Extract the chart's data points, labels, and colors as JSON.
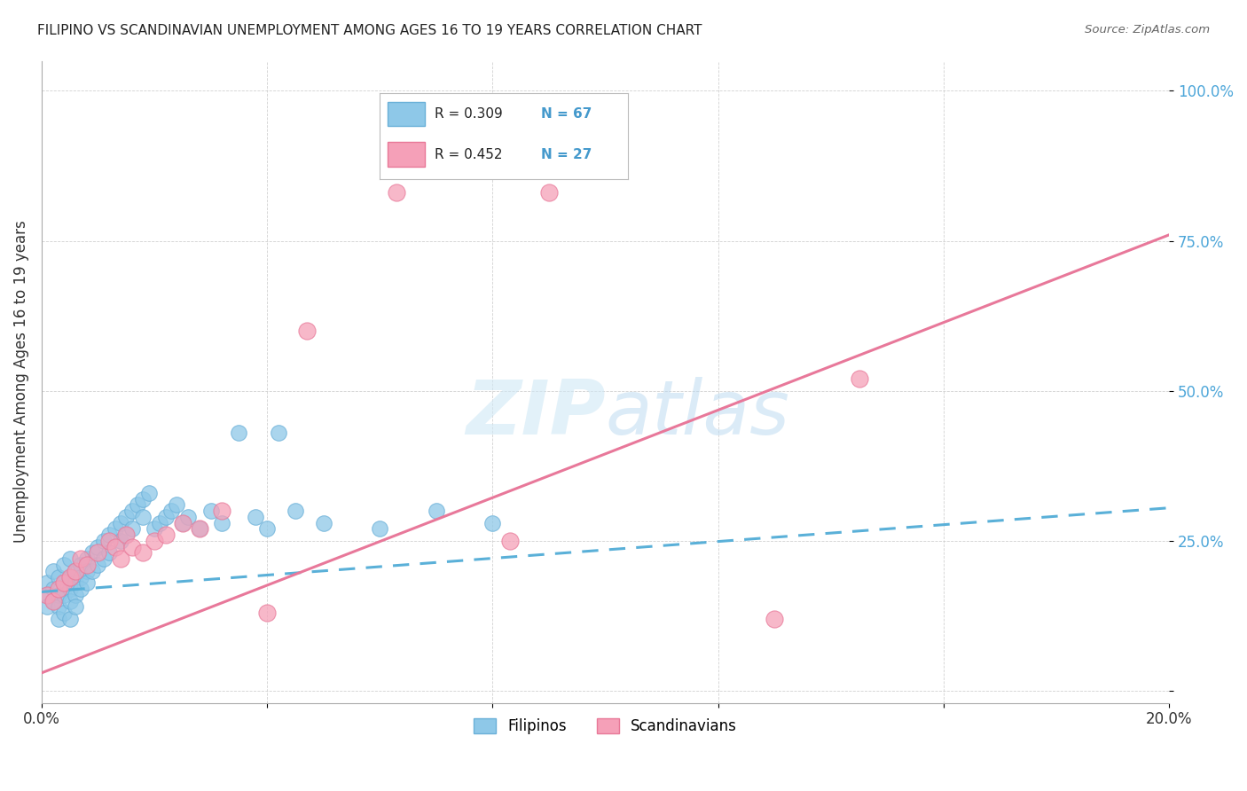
{
  "title": "FILIPINO VS SCANDINAVIAN UNEMPLOYMENT AMONG AGES 16 TO 19 YEARS CORRELATION CHART",
  "source": "Source: ZipAtlas.com",
  "ylabel": "Unemployment Among Ages 16 to 19 years",
  "xlim": [
    0.0,
    0.2
  ],
  "ylim": [
    -0.02,
    1.05
  ],
  "filipino_R": 0.309,
  "filipino_N": 67,
  "scandinavian_R": 0.452,
  "scandinavian_N": 27,
  "filipino_color": "#8ec8e8",
  "filipino_edge": "#6ab0d8",
  "scandinavian_color": "#f5a0b8",
  "scandinavian_edge": "#e87898",
  "trend_filipino_color": "#5ab0d8",
  "trend_scandinavian_color": "#e8789a",
  "watermark_color": "#d0e8f5",
  "background_color": "#ffffff",
  "grid_color": "#cccccc",
  "ytick_color": "#4da6d9",
  "fil_x": [
    0.001,
    0.001,
    0.001,
    0.002,
    0.002,
    0.002,
    0.003,
    0.003,
    0.003,
    0.003,
    0.004,
    0.004,
    0.004,
    0.004,
    0.005,
    0.005,
    0.005,
    0.005,
    0.005,
    0.006,
    0.006,
    0.006,
    0.006,
    0.007,
    0.007,
    0.007,
    0.008,
    0.008,
    0.008,
    0.009,
    0.009,
    0.01,
    0.01,
    0.011,
    0.011,
    0.012,
    0.012,
    0.013,
    0.014,
    0.014,
    0.015,
    0.015,
    0.016,
    0.016,
    0.017,
    0.018,
    0.018,
    0.019,
    0.02,
    0.021,
    0.022,
    0.023,
    0.024,
    0.025,
    0.026,
    0.028,
    0.03,
    0.032,
    0.035,
    0.038,
    0.04,
    0.042,
    0.045,
    0.05,
    0.06,
    0.07,
    0.08
  ],
  "fil_y": [
    0.18,
    0.16,
    0.14,
    0.2,
    0.17,
    0.15,
    0.19,
    0.16,
    0.14,
    0.12,
    0.21,
    0.18,
    0.16,
    0.13,
    0.22,
    0.19,
    0.17,
    0.15,
    0.12,
    0.2,
    0.18,
    0.16,
    0.14,
    0.21,
    0.19,
    0.17,
    0.22,
    0.2,
    0.18,
    0.23,
    0.2,
    0.24,
    0.21,
    0.25,
    0.22,
    0.26,
    0.23,
    0.27,
    0.28,
    0.25,
    0.29,
    0.26,
    0.3,
    0.27,
    0.31,
    0.32,
    0.29,
    0.33,
    0.27,
    0.28,
    0.29,
    0.3,
    0.31,
    0.28,
    0.29,
    0.27,
    0.3,
    0.28,
    0.43,
    0.29,
    0.27,
    0.43,
    0.3,
    0.28,
    0.27,
    0.3,
    0.28
  ],
  "scan_x": [
    0.001,
    0.002,
    0.003,
    0.004,
    0.005,
    0.006,
    0.007,
    0.008,
    0.01,
    0.012,
    0.013,
    0.014,
    0.015,
    0.016,
    0.018,
    0.02,
    0.022,
    0.025,
    0.028,
    0.032,
    0.04,
    0.047,
    0.063,
    0.083,
    0.09,
    0.13,
    0.145
  ],
  "scan_y": [
    0.16,
    0.15,
    0.17,
    0.18,
    0.19,
    0.2,
    0.22,
    0.21,
    0.23,
    0.25,
    0.24,
    0.22,
    0.26,
    0.24,
    0.23,
    0.25,
    0.26,
    0.28,
    0.27,
    0.3,
    0.13,
    0.6,
    0.83,
    0.25,
    0.83,
    0.12,
    0.52
  ],
  "fil_trend_x0": 0.0,
  "fil_trend_x1": 0.2,
  "fil_trend_y0": 0.165,
  "fil_trend_y1": 0.305,
  "scan_trend_x0": 0.0,
  "scan_trend_x1": 0.2,
  "scan_trend_y0": 0.03,
  "scan_trend_y1": 0.76
}
